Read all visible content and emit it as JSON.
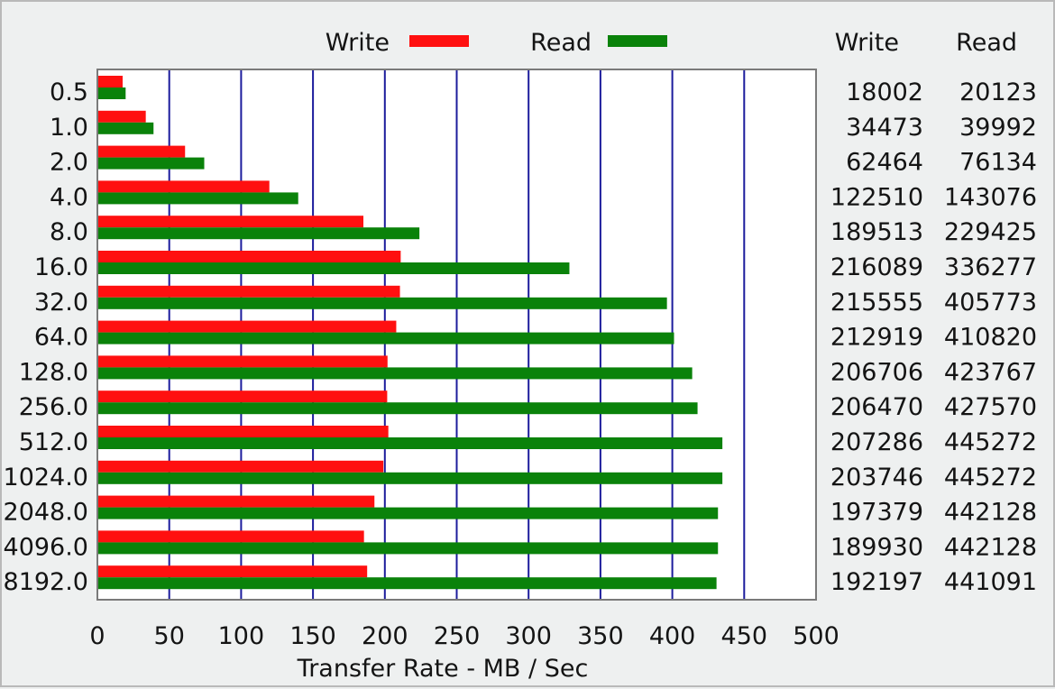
{
  "chart_data": {
    "type": "bar",
    "orientation": "horizontal",
    "xlabel": "Transfer Rate - MB / Sec",
    "xlim": [
      0,
      500
    ],
    "xticks": [
      "0",
      "50",
      "100",
      "150",
      "200",
      "250",
      "300",
      "350",
      "400",
      "450",
      "500"
    ],
    "grid": true,
    "legend_placement": "top",
    "categories": [
      "0.5",
      "1.0",
      "2.0",
      "4.0",
      "8.0",
      "16.0",
      "32.0",
      "64.0",
      "128.0",
      "256.0",
      "512.0",
      "1024.0",
      "2048.0",
      "4096.0",
      "8192.0"
    ],
    "series": [
      {
        "name": "Write",
        "color": "#ff1010",
        "values": [
          18002,
          34473,
          62464,
          122510,
          189513,
          216089,
          215555,
          212919,
          206706,
          206470,
          207286,
          203746,
          197379,
          189930,
          192197
        ],
        "labels": [
          "18002",
          "34473",
          "62464",
          "122510",
          "189513",
          "216089",
          "215555",
          "212919",
          "206706",
          "206470",
          "207286",
          "203746",
          "197379",
          "189930",
          "192197"
        ]
      },
      {
        "name": "Read",
        "color": "#0a820a",
        "values": [
          20123,
          39992,
          76134,
          143076,
          229425,
          336277,
          405773,
          410820,
          423767,
          427570,
          445272,
          445272,
          442128,
          442128,
          441091
        ],
        "labels": [
          "20123",
          "39992",
          "76134",
          "143076",
          "229425",
          "336277",
          "405773",
          "410820",
          "423767",
          "427570",
          "445272",
          "445272",
          "442128",
          "442128",
          "441091"
        ]
      }
    ],
    "value_scale": 1024,
    "table_headers": [
      "Write",
      "Read"
    ]
  },
  "colors": {
    "background": "#eef0f0",
    "plot_background": "#ffffff",
    "gridline": "#1c1c9c",
    "write": "#ff1010",
    "read": "#0a820a"
  }
}
